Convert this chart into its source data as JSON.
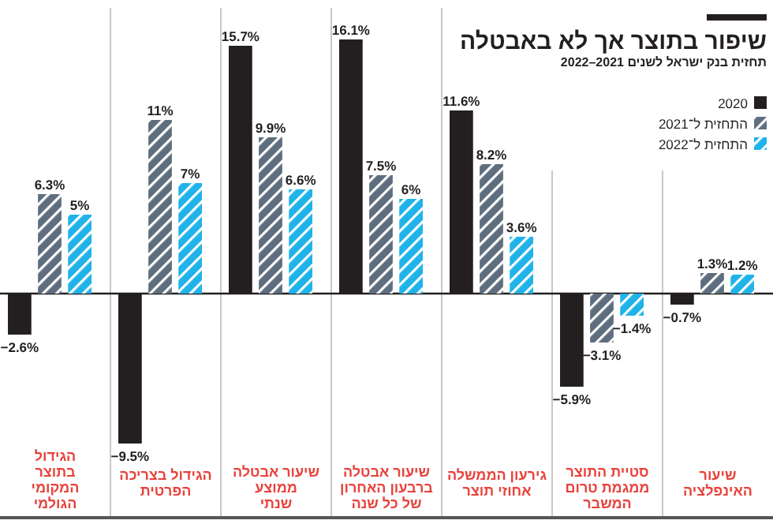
{
  "chart_data": {
    "type": "bar",
    "title": "שיפור בתוצר אך לא באבטלה",
    "subtitle": "תחזית בנק ישראל לשנים 2021–2022",
    "categories": [
      "הגידול\nבתוצר\nהמקומי\nהגולמי",
      "הגידול בצריכה\nהפרטית",
      "שיעור אבטלה\nממוצע\nשנתי",
      "שיעור אבטלה\nברבעון האחרון\nשל כל שנה",
      "גירעון הממשלה\nאחוזי תוצר",
      "סטיית התוצר\nממגמת טרום\nהמשבר",
      "שיעור\nהאינפלציה"
    ],
    "series": [
      {
        "name": "2020",
        "color": "#231f20",
        "values": [
          -2.6,
          -9.5,
          15.7,
          16.1,
          11.6,
          -5.9,
          -0.7
        ],
        "value_labels": [
          "−2.6%",
          "−9.5%",
          "15.7%",
          "16.1%",
          "11.6%",
          "−5.9%",
          "−0.7%"
        ]
      },
      {
        "name": "התחזית ל־2021",
        "color": "#5f6e7e",
        "values": [
          6.3,
          11,
          9.9,
          7.5,
          8.2,
          -3.1,
          1.3
        ],
        "value_labels": [
          "6.3%",
          "11%",
          "9.9%",
          "7.5%",
          "8.2%",
          "−3.1%",
          "1.3%"
        ]
      },
      {
        "name": "התחזית ל־2022",
        "color": "#1fb3ea",
        "values": [
          5,
          7,
          6.6,
          6,
          3.6,
          -1.4,
          1.2
        ],
        "value_labels": [
          "5%",
          "7%",
          "6.6%",
          "6%",
          "3.6%",
          "−1.4%",
          "1.2%"
        ]
      }
    ],
    "legend": "top right"
  }
}
